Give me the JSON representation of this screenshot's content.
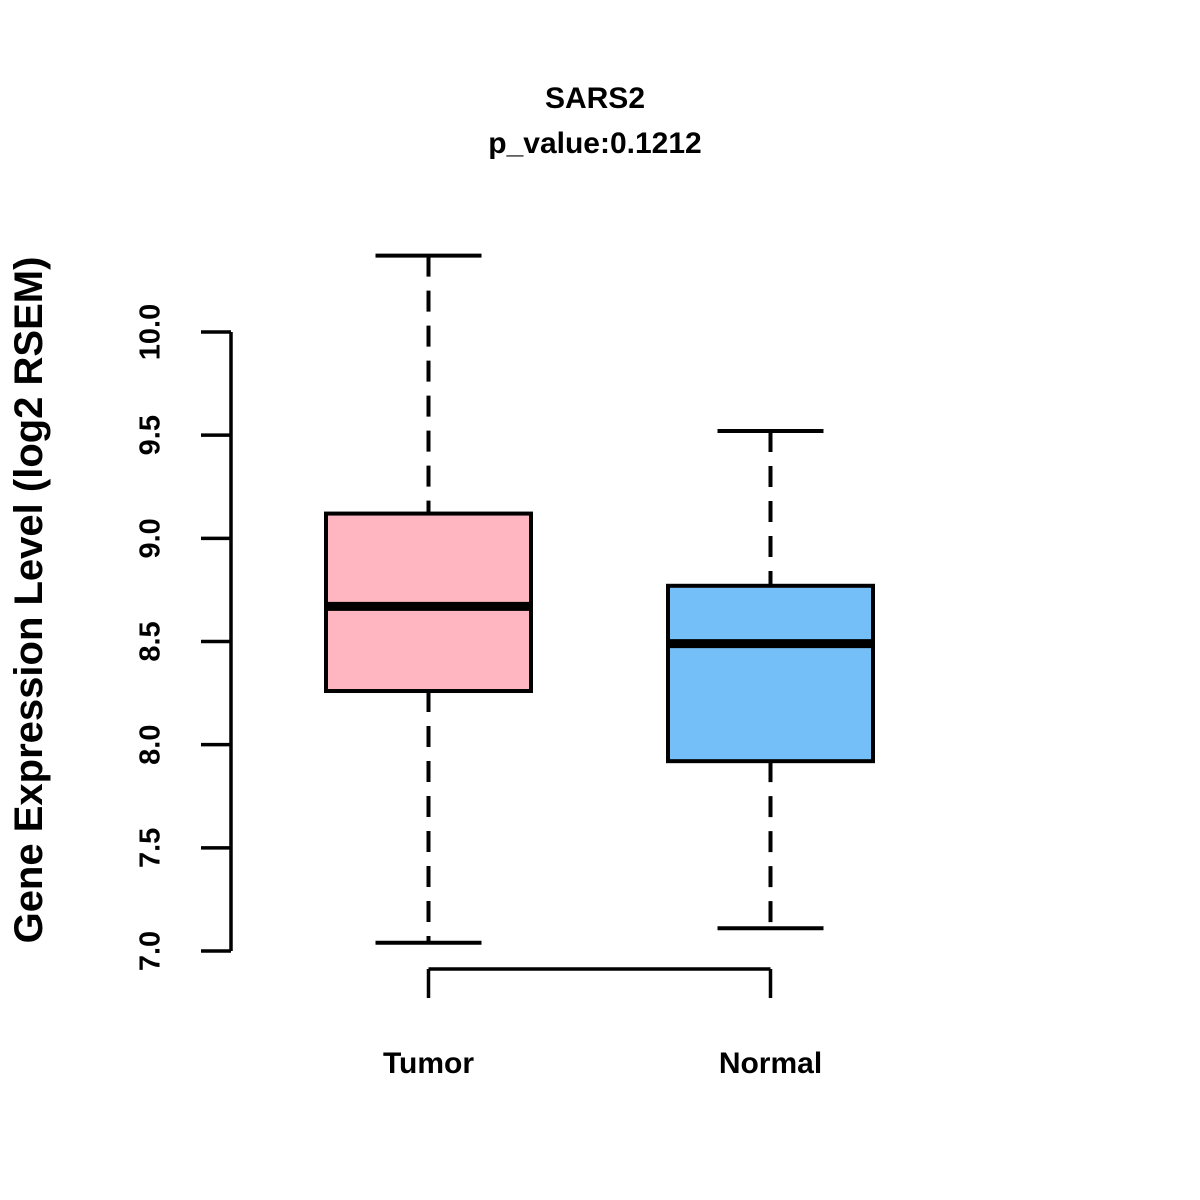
{
  "chart_data": {
    "type": "boxplot",
    "title": "SARS2",
    "subtitle": "p_value:0.1212",
    "ylabel": "Gene Expression Level (log2 RSEM)",
    "xlabel": "",
    "categories": [
      "Tumor",
      "Normal"
    ],
    "ylim": [
      7.0,
      10.0
    ],
    "yticks": [
      7.0,
      7.5,
      8.0,
      8.5,
      9.0,
      9.5,
      10.0
    ],
    "ytick_decimals": 1,
    "grid": false,
    "legend": "none",
    "line_color": "#000000",
    "background_color": "#FFFFFF",
    "series": [
      {
        "name": "Tumor",
        "fill_color": "#FFB6C1",
        "stats": {
          "lower_whisker": 7.04,
          "q1": 8.26,
          "median": 8.67,
          "q3": 9.12,
          "upper_whisker": 10.37
        }
      },
      {
        "name": "Normal",
        "fill_color": "#74BFF7",
        "stats": {
          "lower_whisker": 7.11,
          "q1": 7.92,
          "median": 8.49,
          "q3": 8.77,
          "upper_whisker": 9.52
        }
      }
    ]
  }
}
